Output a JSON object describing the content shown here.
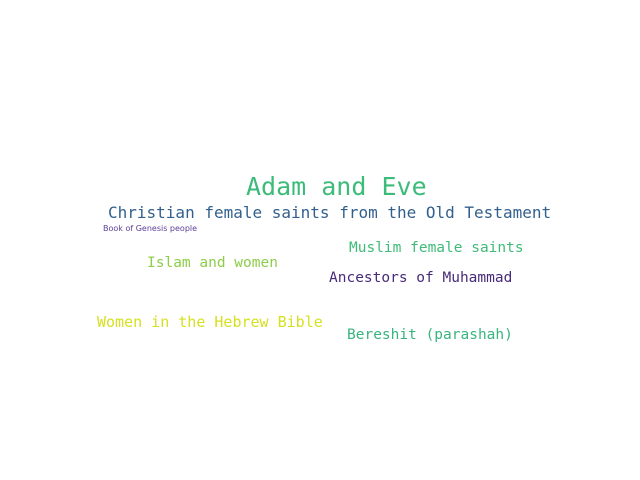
{
  "words": [
    {
      "id": "w-adam",
      "text": "Adam and Eve",
      "color": "#3dbb7a"
    },
    {
      "id": "w-christian",
      "text": "Christian female saints from the Old Testament",
      "color": "#32608d"
    },
    {
      "id": "w-genesis",
      "text": "Book of Genesis people",
      "color": "#5b3f96"
    },
    {
      "id": "w-muslim",
      "text": "Muslim female saints",
      "color": "#3fba78"
    },
    {
      "id": "w-islam",
      "text": "Islam and women",
      "color": "#8ccd4a"
    },
    {
      "id": "w-ancestors",
      "text": "Ancestors of Muhammad",
      "color": "#472a79"
    },
    {
      "id": "w-women-hebrew",
      "text": "Women in the Hebrew Bible",
      "color": "#d6e021"
    },
    {
      "id": "w-bereshit",
      "text": "Bereshit (parashah)",
      "color": "#38b47d"
    }
  ]
}
